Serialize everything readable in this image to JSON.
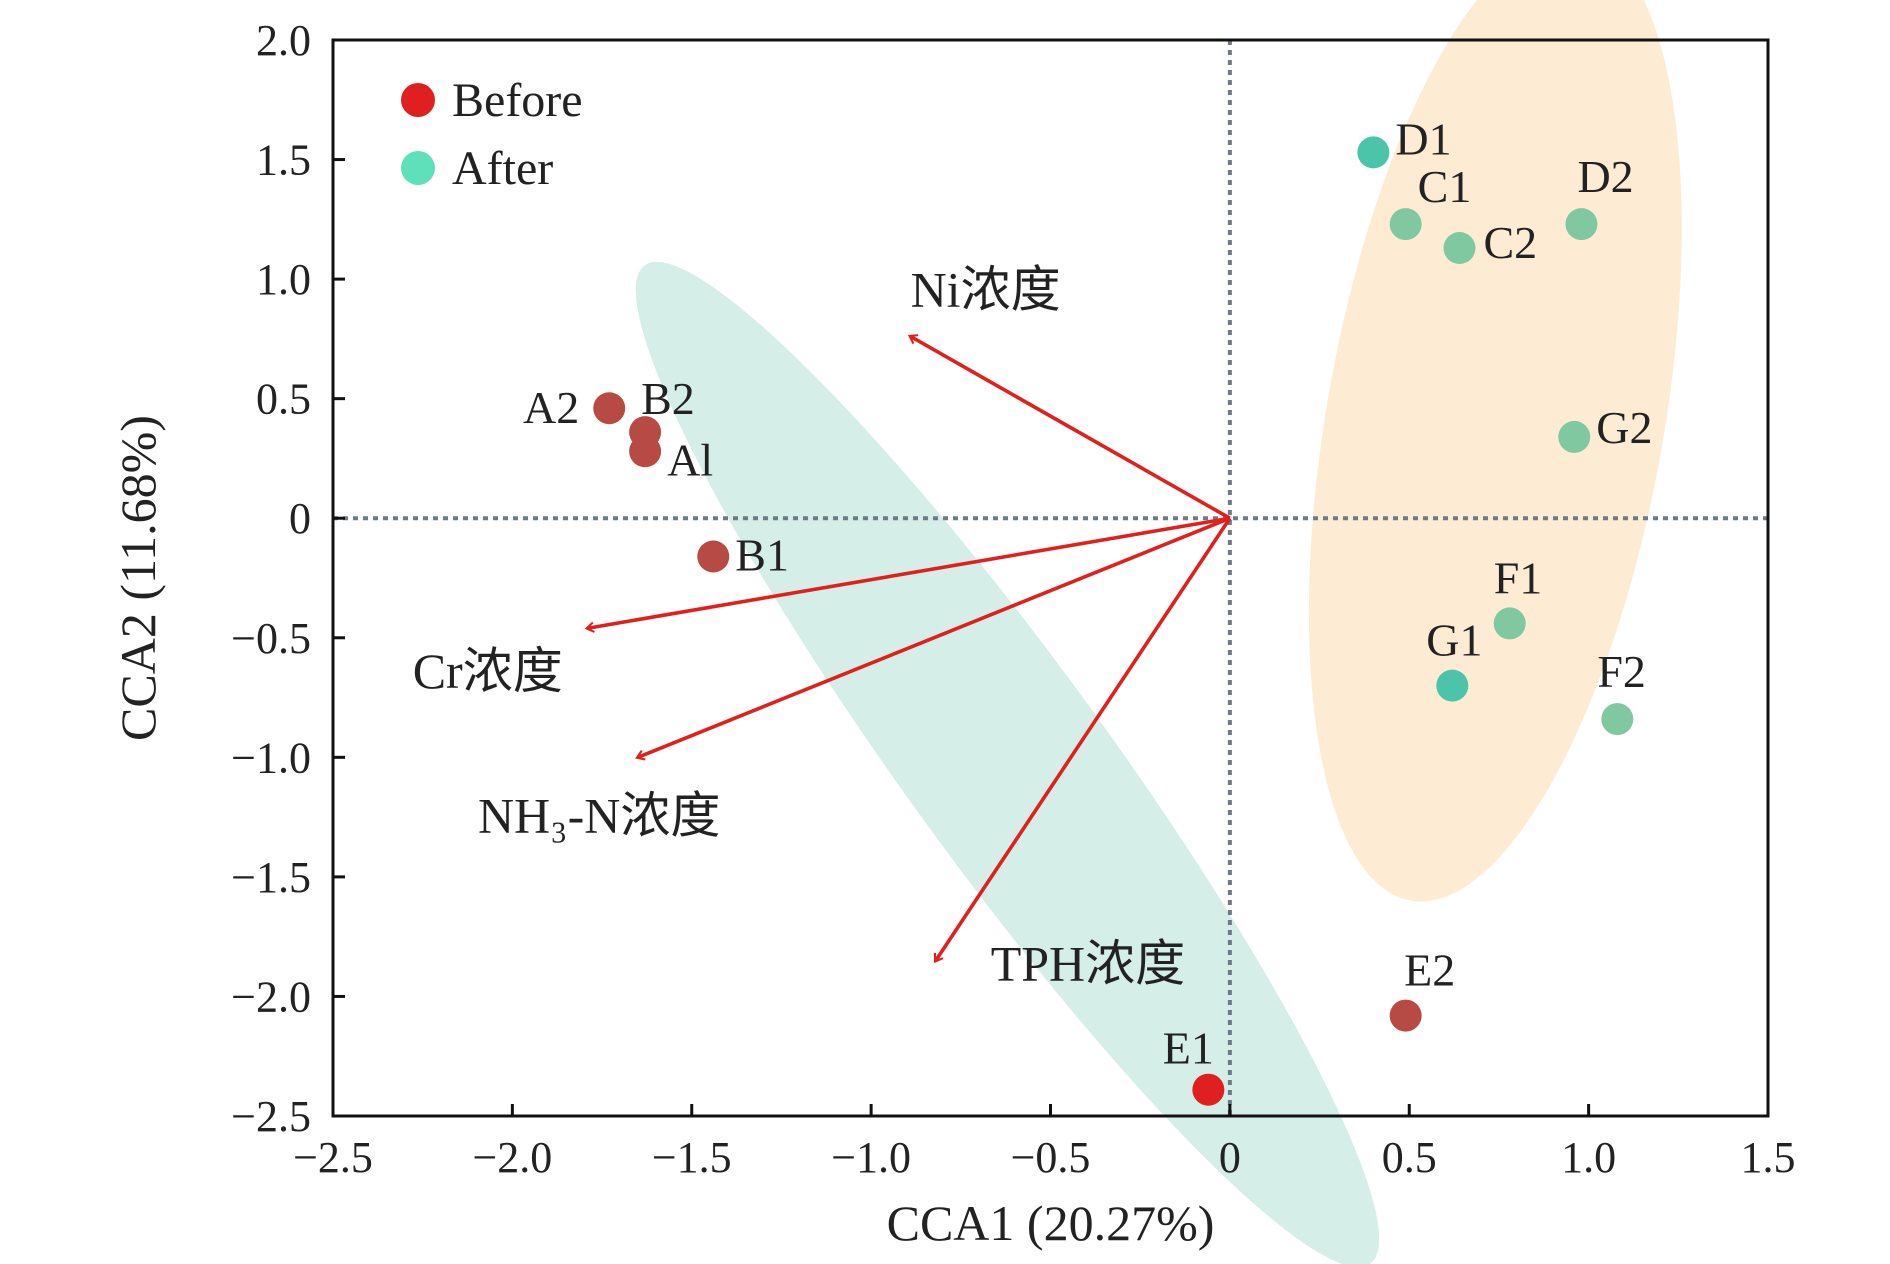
{
  "chart_data": {
    "type": "scatter",
    "title": "",
    "xlabel": "CCA1 (20.27%)",
    "ylabel": "CCA2 (11.68%)",
    "xlim": [
      -2.5,
      1.5
    ],
    "ylim": [
      -2.5,
      2.0
    ],
    "xticks": [
      -2.5,
      -2.0,
      -1.5,
      -1.0,
      -0.5,
      0,
      0.5,
      1.0,
      1.5
    ],
    "yticks": [
      -2.5,
      -2.0,
      -1.5,
      -1.0,
      -0.5,
      0,
      0.5,
      1.0,
      1.5,
      2.0
    ],
    "x_tick_labels": [
      "−2.5",
      "−2.0",
      "−1.5",
      "−1.0",
      "−0.5",
      "0",
      "0.5",
      "1.0",
      "1.5"
    ],
    "y_tick_labels": [
      "−2.5",
      "−2.0",
      "−1.5",
      "−1.0",
      "−0.5",
      "0",
      "0.5",
      "1.0",
      "1.5",
      "2.0"
    ],
    "grid": false,
    "reference_lines": {
      "x": 0,
      "y": 0,
      "style": "dotted"
    },
    "legend": {
      "placement": "top-left",
      "entries": [
        {
          "name": "Before",
          "color": "#e02020"
        },
        {
          "name": "After",
          "color": "#5ee0bb"
        }
      ]
    },
    "series": [
      {
        "name": "Before",
        "color": "#b84a45",
        "points": [
          {
            "label": "A2",
            "x": -1.73,
            "y": 0.46
          },
          {
            "label": "B2",
            "x": -1.63,
            "y": 0.36
          },
          {
            "label": "Al",
            "x": -1.63,
            "y": 0.28
          },
          {
            "label": "B1",
            "x": -1.44,
            "y": -0.16
          },
          {
            "label": "E1",
            "x": -0.06,
            "y": -2.39
          },
          {
            "label": "E2",
            "x": 0.49,
            "y": -2.08
          }
        ]
      },
      {
        "name": "After",
        "color": "#7fc8a0",
        "points": [
          {
            "label": "D1",
            "x": 0.4,
            "y": 1.53
          },
          {
            "label": "C1",
            "x": 0.49,
            "y": 1.23
          },
          {
            "label": "C2",
            "x": 0.64,
            "y": 1.13
          },
          {
            "label": "D2",
            "x": 0.98,
            "y": 1.23
          },
          {
            "label": "G2",
            "x": 0.96,
            "y": 0.34
          },
          {
            "label": "F1",
            "x": 0.78,
            "y": -0.44
          },
          {
            "label": "G1",
            "x": 0.62,
            "y": -0.7
          },
          {
            "label": "F2",
            "x": 1.08,
            "y": -0.84
          }
        ]
      }
    ],
    "vectors": [
      {
        "label": "Ni浓度",
        "x": -0.89,
        "y": 0.76
      },
      {
        "label": "Cr浓度",
        "x": -1.79,
        "y": -0.46
      },
      {
        "label": "NH₃-N浓度",
        "x": -1.65,
        "y": -1.0
      },
      {
        "label": "TPH浓度",
        "x": -0.82,
        "y": -1.85
      }
    ],
    "vector_color": "#e0201c",
    "ellipses": [
      {
        "group": "Before",
        "color": "#d5eee8",
        "cx": -0.62,
        "cy": -1.03,
        "rx": 1.72,
        "ry": 0.28,
        "angle_deg": -54
      },
      {
        "group": "After",
        "color": "#fdebd3",
        "cx": 0.74,
        "cy": 0.41,
        "rx": 0.47,
        "ry": 1.36,
        "angle_deg": -10
      }
    ]
  }
}
